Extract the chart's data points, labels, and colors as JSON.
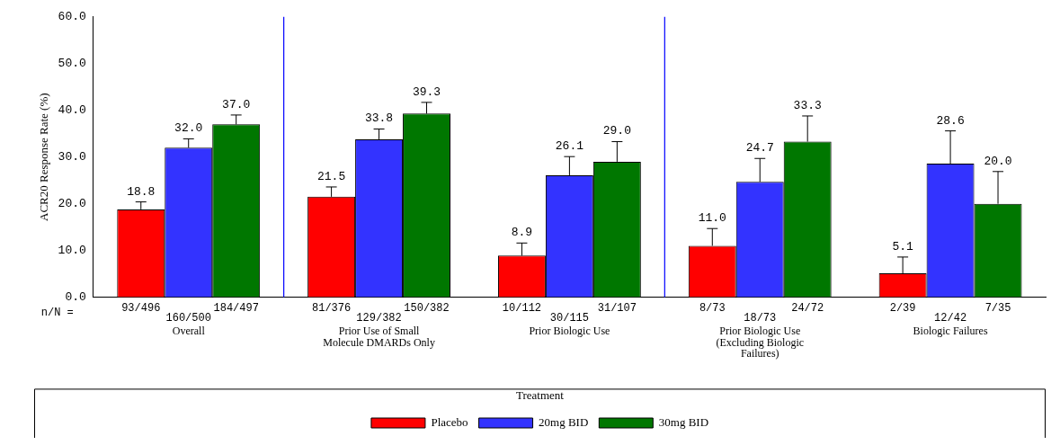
{
  "chart_data": {
    "type": "bar",
    "ylabel": "ACR20 Response Rate (%)",
    "legend_title": "Treatment",
    "legend": "bottom",
    "grid": false,
    "categories": [
      "Overall",
      "Prior Use of Small Molecule DMARDs Only",
      "Prior Biologic Use",
      "Prior Biologic Use (Excluding Biologic Failures)",
      "Biologic Failures"
    ],
    "ylim": [
      0,
      60
    ],
    "yticks": [
      {
        "value": 0,
        "label": "0.0"
      },
      {
        "value": 10,
        "label": "10.0"
      },
      {
        "value": 20,
        "label": "20.0"
      },
      {
        "value": 30,
        "label": "30.0"
      },
      {
        "value": 40,
        "label": "40.0"
      },
      {
        "value": 50,
        "label": "50.0"
      },
      {
        "value": 60,
        "label": "60.0"
      }
    ],
    "series": [
      {
        "name": "Placebo",
        "color": "#ff0000",
        "values": [
          18.8,
          21.5,
          8.9,
          11.0,
          5.1
        ],
        "value_labels": [
          "18.8",
          "21.5",
          "8.9",
          "11.0",
          "5.1"
        ],
        "errors": [
          [
            18.8,
            20.4
          ],
          [
            21.5,
            23.6
          ],
          [
            8.9,
            11.6
          ],
          [
            11.0,
            14.7
          ],
          [
            5.1,
            8.6
          ]
        ]
      },
      {
        "name": "20mg BID",
        "color": "#3333ff",
        "values": [
          32.0,
          33.8,
          26.1,
          24.7,
          28.6
        ],
        "value_labels": [
          "32.0",
          "33.8",
          "26.1",
          "24.7",
          "28.6"
        ],
        "errors": [
          [
            32.0,
            33.9
          ],
          [
            33.8,
            36.0
          ],
          [
            26.1,
            30.1
          ],
          [
            24.7,
            29.7
          ],
          [
            28.6,
            35.6
          ]
        ]
      },
      {
        "name": "30mg BID",
        "color": "#007700",
        "values": [
          37.0,
          39.3,
          29.0,
          33.3,
          20.0
        ],
        "value_labels": [
          "37.0",
          "39.3",
          "29.0",
          "33.3",
          "20.0"
        ],
        "errors": [
          [
            37.0,
            39.0
          ],
          [
            39.3,
            41.7
          ],
          [
            29.0,
            33.3
          ],
          [
            33.3,
            38.8
          ],
          [
            20.0,
            26.9
          ]
        ]
      }
    ],
    "annotations": [
      "n/N =",
      "93/496",
      "160/500",
      "184/497",
      "81/376",
      "129/382",
      "150/382",
      "10/112",
      "30/115",
      "31/107",
      "8/73",
      "18/73",
      "24/72",
      "2/39",
      "12/42",
      "7/35"
    ]
  }
}
